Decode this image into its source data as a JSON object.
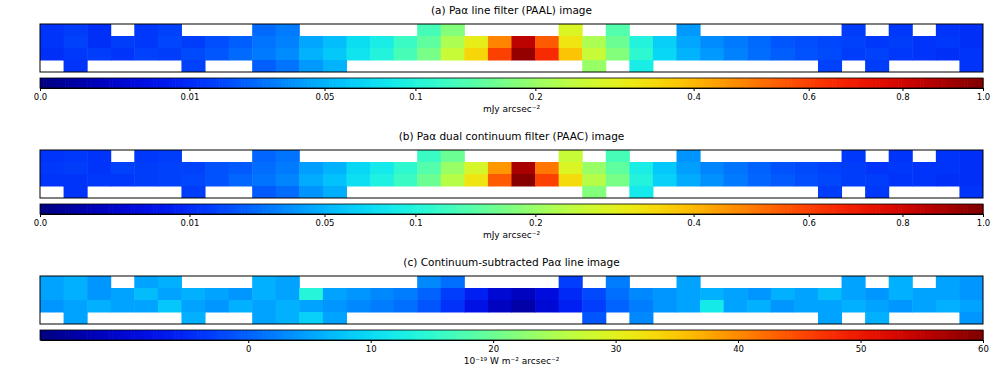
{
  "chart_data": [
    {
      "type": "heatmap",
      "title": "(a) Paα line filter (PAAL) image",
      "tick_labels": false,
      "cells": [
        [
          0.012,
          0.014,
          0.011,
          null,
          0.013,
          0.015,
          null,
          null,
          null,
          0.025,
          0.03,
          null,
          null,
          null,
          null,
          null,
          0.13,
          0.18,
          null,
          null,
          null,
          null,
          0.28,
          null,
          0.14,
          null,
          null,
          0.04,
          null,
          null,
          null,
          null,
          null,
          null,
          0.014,
          null,
          0.013,
          null,
          0.012,
          0.011
        ],
        [
          0.012,
          0.015,
          0.011,
          0.014,
          0.013,
          0.016,
          0.014,
          0.018,
          0.022,
          0.028,
          0.032,
          0.045,
          0.055,
          0.075,
          0.09,
          0.12,
          0.15,
          0.22,
          0.3,
          0.48,
          0.85,
          0.55,
          0.32,
          0.22,
          0.16,
          0.1,
          0.065,
          0.045,
          0.035,
          0.03,
          0.025,
          0.02,
          0.018,
          0.016,
          0.015,
          0.013,
          0.014,
          0.012,
          0.013,
          0.011
        ],
        [
          0.011,
          0.013,
          0.014,
          0.012,
          0.015,
          0.014,
          0.017,
          0.02,
          0.025,
          0.03,
          0.035,
          0.05,
          0.06,
          0.08,
          0.1,
          0.13,
          0.17,
          0.25,
          0.35,
          0.6,
          0.95,
          0.65,
          0.38,
          0.25,
          0.18,
          0.11,
          0.07,
          0.05,
          0.04,
          0.032,
          0.026,
          0.022,
          0.019,
          0.017,
          0.014,
          0.015,
          0.013,
          0.012,
          0.011,
          0.012
        ],
        [
          null,
          0.012,
          null,
          null,
          null,
          null,
          0.015,
          null,
          null,
          0.022,
          0.028,
          0.04,
          0.05,
          null,
          null,
          null,
          null,
          null,
          null,
          null,
          null,
          null,
          null,
          0.2,
          null,
          0.09,
          null,
          null,
          null,
          null,
          null,
          null,
          null,
          0.015,
          null,
          0.014,
          null,
          null,
          null,
          0.012
        ]
      ],
      "colorbar": {
        "range": [
          0,
          1
        ],
        "label": "mJy arcsec⁻²",
        "ticks": [
          {
            "value": 0,
            "label": "0.0"
          },
          0.01,
          0.05,
          0.1,
          0.2,
          0.4,
          0.6,
          0.8,
          {
            "value": 1,
            "label": "1.0"
          }
        ]
      }
    },
    {
      "type": "heatmap",
      "title": "(b) Paα dual continuum filter (PAAC) image",
      "tick_labels": false,
      "cells": [
        [
          0.012,
          0.013,
          0.012,
          null,
          0.013,
          0.014,
          null,
          null,
          null,
          0.024,
          0.028,
          null,
          null,
          null,
          null,
          null,
          0.12,
          0.16,
          null,
          null,
          null,
          null,
          0.25,
          null,
          0.13,
          null,
          null,
          0.038,
          null,
          null,
          null,
          null,
          null,
          null,
          0.013,
          null,
          0.012,
          null,
          0.012,
          0.011
        ],
        [
          0.013,
          0.014,
          0.012,
          0.015,
          0.014,
          0.015,
          0.015,
          0.019,
          0.021,
          0.026,
          0.03,
          0.042,
          0.05,
          0.07,
          0.085,
          0.11,
          0.14,
          0.2,
          0.27,
          0.45,
          0.9,
          0.5,
          0.28,
          0.2,
          0.15,
          0.09,
          0.06,
          0.042,
          0.033,
          0.028,
          0.023,
          0.019,
          0.017,
          0.015,
          0.014,
          0.012,
          0.013,
          0.012,
          0.012,
          0.011
        ],
        [
          0.012,
          0.012,
          0.013,
          0.013,
          0.014,
          0.015,
          0.016,
          0.019,
          0.024,
          0.028,
          0.033,
          0.047,
          0.057,
          0.076,
          0.095,
          0.12,
          0.16,
          0.23,
          0.32,
          0.55,
          0.98,
          0.6,
          0.34,
          0.23,
          0.17,
          0.1,
          0.066,
          0.047,
          0.037,
          0.03,
          0.024,
          0.021,
          0.018,
          0.016,
          0.014,
          0.014,
          0.012,
          0.012,
          0.011,
          0.011
        ],
        [
          null,
          0.012,
          null,
          null,
          null,
          null,
          0.014,
          null,
          null,
          0.021,
          0.026,
          0.038,
          0.048,
          null,
          null,
          null,
          null,
          null,
          null,
          null,
          null,
          null,
          null,
          0.18,
          null,
          0.085,
          null,
          null,
          null,
          null,
          null,
          null,
          null,
          0.014,
          null,
          0.013,
          null,
          null,
          null,
          0.012
        ]
      ],
      "colorbar": {
        "range": [
          0,
          1
        ],
        "label": "mJy arcsec⁻²",
        "ticks": [
          {
            "value": 0,
            "label": "0.0"
          },
          0.01,
          0.05,
          0.1,
          0.2,
          0.4,
          0.6,
          0.8,
          {
            "value": 1,
            "label": "1.0"
          }
        ]
      }
    },
    {
      "type": "heatmap",
      "title": "(c) Continuum-subtracted Paα line image",
      "tick_labels": false,
      "cells": [
        [
          5,
          6,
          4,
          null,
          5,
          6,
          null,
          null,
          null,
          6,
          5,
          null,
          null,
          null,
          null,
          null,
          3,
          1,
          null,
          null,
          null,
          null,
          -3,
          null,
          2,
          null,
          null,
          5,
          null,
          null,
          null,
          null,
          null,
          null,
          5,
          null,
          6,
          null,
          5,
          4
        ],
        [
          5,
          6,
          4,
          5,
          7,
          5,
          6,
          5,
          4,
          6,
          5,
          14,
          5,
          4,
          3,
          2,
          0,
          -3,
          -6,
          -10,
          -12,
          -9,
          -5,
          -2,
          1,
          3,
          4,
          5,
          6,
          5,
          4,
          6,
          5,
          7,
          5,
          4,
          6,
          5,
          5,
          4
        ],
        [
          4,
          5,
          6,
          5,
          5,
          8,
          5,
          4,
          6,
          5,
          6,
          5,
          4,
          3,
          2,
          1,
          -1,
          -4,
          -8,
          -12,
          -14,
          -10,
          -6,
          -3,
          0,
          2,
          4,
          5,
          12,
          5,
          6,
          4,
          5,
          5,
          6,
          5,
          4,
          5,
          6,
          5
        ],
        [
          null,
          5,
          null,
          null,
          null,
          null,
          6,
          null,
          null,
          5,
          6,
          9,
          5,
          null,
          null,
          null,
          null,
          null,
          null,
          null,
          null,
          null,
          null,
          -1,
          null,
          3,
          null,
          null,
          null,
          null,
          null,
          null,
          null,
          5,
          null,
          6,
          null,
          null,
          null,
          4
        ]
      ],
      "colorbar": {
        "range": [
          -17,
          60
        ],
        "label": "10⁻¹⁹ W m⁻² arcsec⁻²",
        "ticks": [
          0,
          10,
          20,
          30,
          40,
          50,
          60
        ]
      }
    }
  ]
}
